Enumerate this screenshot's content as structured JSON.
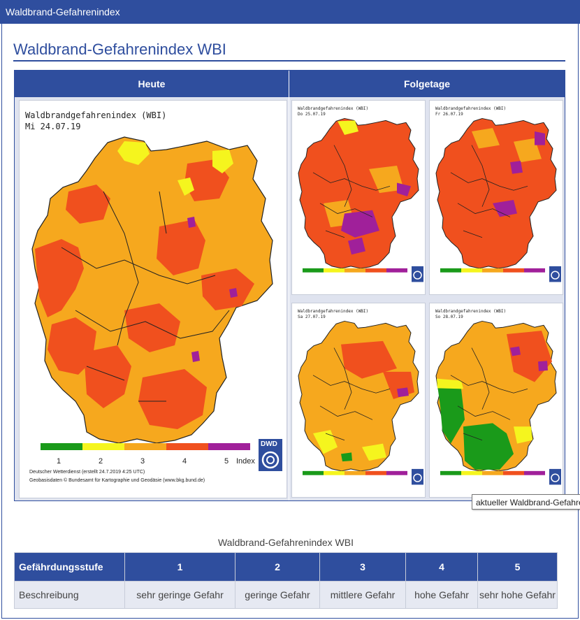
{
  "window": {
    "title": "Waldbrand-Gefahrenindex"
  },
  "page": {
    "heading": "Waldbrand-Gefahrenindex WBI"
  },
  "maps": {
    "header_today": "Heute",
    "header_following": "Folgetage",
    "main": {
      "title": "Waldbrandgefahrenindex (WBI)",
      "date": "Mi 24.07.19",
      "legend_numbers": [
        "1",
        "2",
        "3",
        "4",
        "5"
      ],
      "legend_label": "Index",
      "footer_line1": "Deutscher Wetterdienst (erstellt 24.7.2019 4:25 UTC)",
      "footer_line2": "Geobasisdaten © Bundesamt für Kartographie und Geodäsie (www.bkg.bund.de)",
      "logo_text": "DWD"
    },
    "days": [
      {
        "title": "Waldbrandgefahrenindex (WBI)",
        "date": "Do 25.07.19"
      },
      {
        "title": "Waldbrandgefahrenindex (WBI)",
        "date": "Fr 26.07.19"
      },
      {
        "title": "Waldbrandgefahrenindex (WBI)",
        "date": "Sa 27.07.19"
      },
      {
        "title": "Waldbrandgefahrenindex (WBI)",
        "date": "So 28.07.19"
      }
    ]
  },
  "tooltip": {
    "text": "aktueller Waldbrand-Gefahrenindex"
  },
  "legend_table": {
    "caption": "Waldbrand-Gefahrenindex WBI",
    "header": [
      "Gefährdungsstufe",
      "1",
      "2",
      "3",
      "4",
      "5"
    ],
    "row": [
      "Beschreibung",
      "sehr geringe Gefahr",
      "geringe Gefahr",
      "mittlere Gefahr",
      "hohe Gefahr",
      "sehr hohe Gefahr"
    ]
  },
  "colors": {
    "accent": "#2f4e9e",
    "level1": "#1a9a1a",
    "level2": "#f5f51e",
    "level3": "#f6a81e",
    "level4": "#f0501e",
    "level5": "#a0209a"
  }
}
